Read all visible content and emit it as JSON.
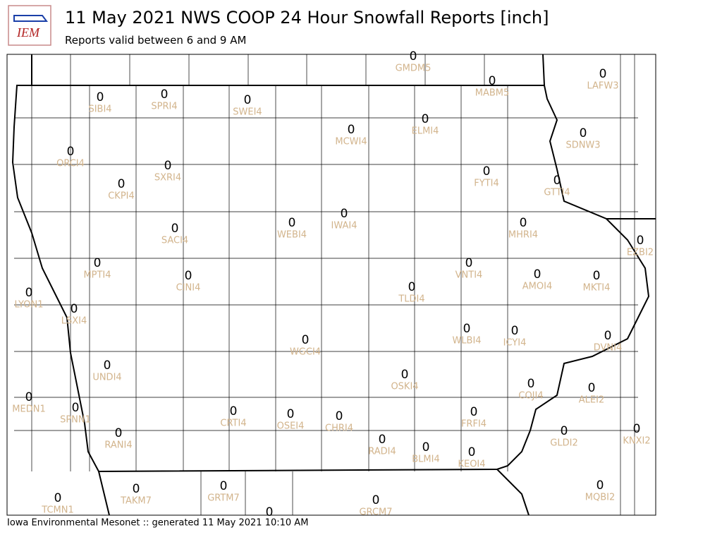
{
  "header": {
    "logo": "IEM",
    "title": "11 May 2021 NWS COOP 24 Hour Snowfall Reports [inch]",
    "subtitle": "Reports valid between 6 and 9 AM"
  },
  "stations": [
    {
      "id": "GMDM5",
      "value": 0
    },
    {
      "id": "MABM5",
      "value": 0
    },
    {
      "id": "LAFW3",
      "value": 0
    },
    {
      "id": "SIBI4",
      "value": 0
    },
    {
      "id": "SPRI4",
      "value": 0
    },
    {
      "id": "SWEI4",
      "value": 0
    },
    {
      "id": "ELMI4",
      "value": 0
    },
    {
      "id": "MCWI4",
      "value": 0
    },
    {
      "id": "SDNW3",
      "value": 0
    },
    {
      "id": "ORCI4",
      "value": 0
    },
    {
      "id": "SXRI4",
      "value": 0
    },
    {
      "id": "FYTI4",
      "value": 0
    },
    {
      "id": "CKPI4",
      "value": 0
    },
    {
      "id": "GTTI4",
      "value": 0
    },
    {
      "id": "IWAI4",
      "value": 0
    },
    {
      "id": "WEBI4",
      "value": 0
    },
    {
      "id": "SACI4",
      "value": 0
    },
    {
      "id": "MHRI4",
      "value": 0
    },
    {
      "id": "EZBI2",
      "value": 0
    },
    {
      "id": "MPTI4",
      "value": 0
    },
    {
      "id": "VNTI4",
      "value": 0
    },
    {
      "id": "CINI4",
      "value": 0
    },
    {
      "id": "AMOI4",
      "value": 0
    },
    {
      "id": "MKTI4",
      "value": 0
    },
    {
      "id": "TLDI4",
      "value": 0
    },
    {
      "id": "LYON1",
      "value": 0
    },
    {
      "id": "LSXI4",
      "value": 0
    },
    {
      "id": "WLBI4",
      "value": 0
    },
    {
      "id": "ICYI4",
      "value": 0
    },
    {
      "id": "DVNI4",
      "value": 0
    },
    {
      "id": "WGCI4",
      "value": 0
    },
    {
      "id": "UNDI4",
      "value": 0
    },
    {
      "id": "OSKI4",
      "value": 0
    },
    {
      "id": "COJI4",
      "value": 0
    },
    {
      "id": "ALEI2",
      "value": 0
    },
    {
      "id": "MEDN1",
      "value": 0
    },
    {
      "id": "SPNN1",
      "value": 0
    },
    {
      "id": "CRTI4",
      "value": 0
    },
    {
      "id": "OSEI4",
      "value": 0
    },
    {
      "id": "CHRI4",
      "value": 0
    },
    {
      "id": "FRFI4",
      "value": 0
    },
    {
      "id": "KNXI2",
      "value": 0
    },
    {
      "id": "RANI4",
      "value": 0
    },
    {
      "id": "GLDI2",
      "value": 0
    },
    {
      "id": "RADI4",
      "value": 0
    },
    {
      "id": "BLMI4",
      "value": 0
    },
    {
      "id": "KEOI4",
      "value": 0
    },
    {
      "id": "TAKM7",
      "value": 0
    },
    {
      "id": "GRTM7",
      "value": 0
    },
    {
      "id": "MQBI2",
      "value": 0
    },
    {
      "id": "TCMN1",
      "value": 0
    },
    {
      "id": "GRCM7",
      "value": 0
    },
    {
      "value": 0
    }
  ],
  "footer": "Iowa Environmental Mesonet :: generated 11 May 2021 10:10 AM"
}
